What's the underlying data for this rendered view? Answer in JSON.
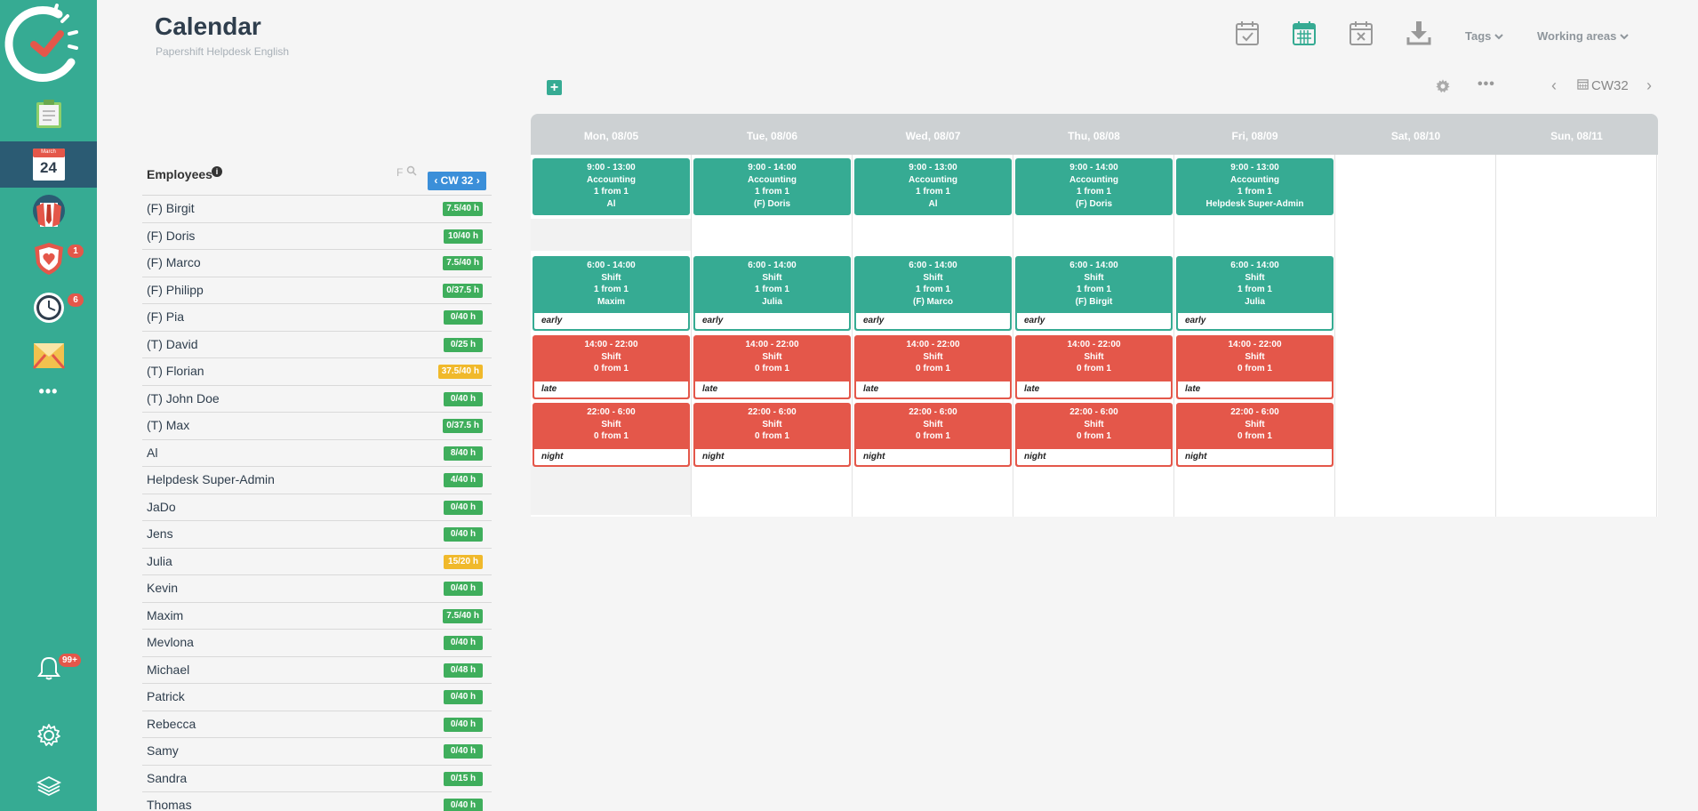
{
  "header": {
    "title": "Calendar",
    "subtitle": "Papershift Helpdesk English"
  },
  "top_dropdowns": {
    "tags": "Tags",
    "working_areas": "Working areas"
  },
  "sidebar": {
    "calendar_month": "March",
    "calendar_day": "24",
    "badges": {
      "absence": "1",
      "time_tracking": "6",
      "notifications": "99+"
    }
  },
  "employees": {
    "title": "Employees",
    "filter_label": "F",
    "week_button": "CW 32",
    "list": [
      {
        "name": "(F) Birgit",
        "hours": "7.5/40 h",
        "status": "green"
      },
      {
        "name": "(F) Doris",
        "hours": "10/40 h",
        "status": "green"
      },
      {
        "name": "(F) Marco",
        "hours": "7.5/40 h",
        "status": "green"
      },
      {
        "name": "(F) Philipp",
        "hours": "0/37.5 h",
        "status": "green"
      },
      {
        "name": "(F) Pia",
        "hours": "0/40 h",
        "status": "green"
      },
      {
        "name": "(T) David",
        "hours": "0/25 h",
        "status": "green"
      },
      {
        "name": "(T) Florian",
        "hours": "37.5/40 h",
        "status": "yellow"
      },
      {
        "name": "(T) John Doe",
        "hours": "0/40 h",
        "status": "green"
      },
      {
        "name": "(T) Max",
        "hours": "0/37.5 h",
        "status": "green"
      },
      {
        "name": "Al",
        "hours": "8/40 h",
        "status": "green"
      },
      {
        "name": "Helpdesk Super-Admin",
        "hours": "4/40 h",
        "status": "green"
      },
      {
        "name": "JaDo",
        "hours": "0/40 h",
        "status": "green"
      },
      {
        "name": "Jens",
        "hours": "0/40 h",
        "status": "green"
      },
      {
        "name": "Julia",
        "hours": "15/20 h",
        "status": "yellow"
      },
      {
        "name": "Kevin",
        "hours": "0/40 h",
        "status": "green"
      },
      {
        "name": "Maxim",
        "hours": "7.5/40 h",
        "status": "green"
      },
      {
        "name": "Mevlona",
        "hours": "0/40 h",
        "status": "green"
      },
      {
        "name": "Michael",
        "hours": "0/48 h",
        "status": "green"
      },
      {
        "name": "Patrick",
        "hours": "0/40 h",
        "status": "green"
      },
      {
        "name": "Rebecca",
        "hours": "0/40 h",
        "status": "green"
      },
      {
        "name": "Samy",
        "hours": "0/40 h",
        "status": "green"
      },
      {
        "name": "Sandra",
        "hours": "0/15 h",
        "status": "green"
      },
      {
        "name": "Thomas",
        "hours": "0/40 h",
        "status": "green"
      }
    ]
  },
  "toolbar": {
    "week_label": "CW32"
  },
  "days": [
    "Mon, 08/05",
    "Tue, 08/06",
    "Wed, 08/07",
    "Thu, 08/08",
    "Fri, 08/09",
    "Sat, 08/10",
    "Sun, 08/11"
  ],
  "shifts": [
    [
      {
        "time": "9:00 - 13:00",
        "area": "Accounting",
        "count": "1 from 1",
        "who": "Al",
        "tag": "",
        "color": "green"
      },
      {
        "time": "6:00 - 14:00",
        "area": "Shift",
        "count": "1 from 1",
        "who": "Maxim",
        "tag": "early",
        "color": "green"
      },
      {
        "time": "14:00 - 22:00",
        "area": "Shift",
        "count": "0 from 1",
        "who": "",
        "tag": "late",
        "color": "red"
      },
      {
        "time": "22:00 - 6:00",
        "area": "Shift",
        "count": "0 from 1",
        "who": "",
        "tag": "night",
        "color": "red"
      }
    ],
    [
      {
        "time": "9:00 - 14:00",
        "area": "Accounting",
        "count": "1 from 1",
        "who": "(F) Doris",
        "tag": "",
        "color": "green"
      },
      {
        "time": "6:00 - 14:00",
        "area": "Shift",
        "count": "1 from 1",
        "who": "Julia",
        "tag": "early",
        "color": "green"
      },
      {
        "time": "14:00 - 22:00",
        "area": "Shift",
        "count": "0 from 1",
        "who": "",
        "tag": "late",
        "color": "red"
      },
      {
        "time": "22:00 - 6:00",
        "area": "Shift",
        "count": "0 from 1",
        "who": "",
        "tag": "night",
        "color": "red"
      }
    ],
    [
      {
        "time": "9:00 - 13:00",
        "area": "Accounting",
        "count": "1 from 1",
        "who": "Al",
        "tag": "",
        "color": "green"
      },
      {
        "time": "6:00 - 14:00",
        "area": "Shift",
        "count": "1 from 1",
        "who": "(F) Marco",
        "tag": "early",
        "color": "green"
      },
      {
        "time": "14:00 - 22:00",
        "area": "Shift",
        "count": "0 from 1",
        "who": "",
        "tag": "late",
        "color": "red"
      },
      {
        "time": "22:00 - 6:00",
        "area": "Shift",
        "count": "0 from 1",
        "who": "",
        "tag": "night",
        "color": "red"
      }
    ],
    [
      {
        "time": "9:00 - 14:00",
        "area": "Accounting",
        "count": "1 from 1",
        "who": "(F) Doris",
        "tag": "",
        "color": "green"
      },
      {
        "time": "6:00 - 14:00",
        "area": "Shift",
        "count": "1 from 1",
        "who": "(F) Birgit",
        "tag": "early",
        "color": "green"
      },
      {
        "time": "14:00 - 22:00",
        "area": "Shift",
        "count": "0 from 1",
        "who": "",
        "tag": "late",
        "color": "red"
      },
      {
        "time": "22:00 - 6:00",
        "area": "Shift",
        "count": "0 from 1",
        "who": "",
        "tag": "night",
        "color": "red"
      }
    ],
    [
      {
        "time": "9:00 - 13:00",
        "area": "Accounting",
        "count": "1 from 1",
        "who": "Helpdesk Super-Admin",
        "tag": "",
        "color": "green"
      },
      {
        "time": "6:00 - 14:00",
        "area": "Shift",
        "count": "1 from 1",
        "who": "Julia",
        "tag": "early",
        "color": "green"
      },
      {
        "time": "14:00 - 22:00",
        "area": "Shift",
        "count": "0 from 1",
        "who": "",
        "tag": "late",
        "color": "red"
      },
      {
        "time": "22:00 - 6:00",
        "area": "Shift",
        "count": "0 from 1",
        "who": "",
        "tag": "night",
        "color": "red"
      }
    ],
    [],
    []
  ],
  "colors": {
    "brand": "#36ab93",
    "sidebar_active": "#2b5b73",
    "danger": "#e4574a",
    "hours_green": "#3fae5c",
    "hours_yellow": "#f0b92b",
    "week_button": "#3b8fd9"
  }
}
